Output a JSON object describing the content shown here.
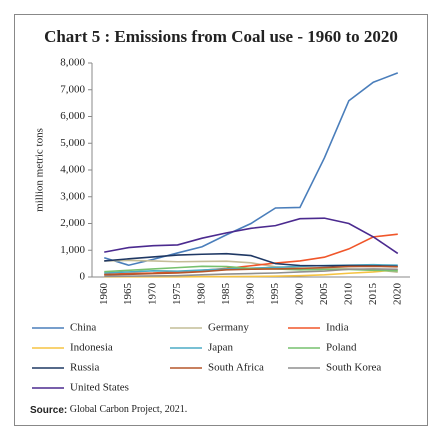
{
  "chart_data": {
    "type": "line",
    "title": "Chart 5 : Emissions from Coal use - 1960 to 2020",
    "y_label": "million metric tons",
    "categories": [
      "1960",
      "1965",
      "1970",
      "1975",
      "1980",
      "1985",
      "1990",
      "1995",
      "2000",
      "2005",
      "2010",
      "2015",
      "2020"
    ],
    "ylim": [
      0,
      8000
    ],
    "yticks": [
      0,
      {
        "value": 1000,
        "label": "1,000"
      },
      {
        "value": 2000,
        "label": "2,000"
      },
      {
        "value": 3000,
        "label": "3,000"
      },
      {
        "value": 4000,
        "label": "4,000"
      },
      {
        "value": 5000,
        "label": "5,000"
      },
      {
        "value": 6000,
        "label": "6,000"
      },
      {
        "value": 7000,
        "label": "7,000"
      },
      {
        "value": 8000,
        "label": "8,000"
      }
    ],
    "grid": false,
    "series": [
      {
        "name": "China",
        "color": "#4a7ebb",
        "values": [
          720,
          440,
          660,
          900,
          1130,
          1580,
          2000,
          2580,
          2600,
          4450,
          6590,
          7280,
          7630
        ]
      },
      {
        "name": "Germany",
        "color": "#c4bd97",
        "values": [
          600,
          620,
          600,
          570,
          580,
          590,
          530,
          380,
          330,
          330,
          300,
          280,
          180
        ]
      },
      {
        "name": "India",
        "color": "#f0562a",
        "values": [
          100,
          130,
          150,
          200,
          250,
          320,
          420,
          520,
          600,
          740,
          1050,
          1500,
          1600
        ]
      },
      {
        "name": "Indonesia",
        "color": "#f5c342",
        "values": [
          5,
          5,
          5,
          5,
          10,
          15,
          20,
          30,
          50,
          80,
          140,
          190,
          270
        ]
      },
      {
        "name": "Japan",
        "color": "#4bacc6",
        "values": [
          150,
          190,
          230,
          220,
          260,
          300,
          330,
          360,
          400,
          430,
          440,
          460,
          440
        ]
      },
      {
        "name": "Poland",
        "color": "#77c16e",
        "values": [
          200,
          250,
          300,
          350,
          400,
          390,
          320,
          300,
          270,
          280,
          280,
          250,
          230
        ]
      },
      {
        "name": "Russia",
        "color": "#1f3864",
        "values": [
          600,
          680,
          750,
          820,
          850,
          870,
          800,
          500,
          430,
          420,
          430,
          420,
          400
        ]
      },
      {
        "name": "South Africa",
        "color": "#b5562a",
        "values": [
          80,
          100,
          130,
          150,
          200,
          270,
          290,
          300,
          320,
          350,
          390,
          400,
          380
        ]
      },
      {
        "name": "South Korea",
        "color": "#8f8f8f",
        "values": [
          20,
          30,
          40,
          50,
          80,
          110,
          130,
          150,
          190,
          220,
          290,
          300,
          290
        ]
      },
      {
        "name": "United States",
        "color": "#4b2a8f",
        "values": [
          930,
          1100,
          1170,
          1200,
          1450,
          1650,
          1820,
          1920,
          2180,
          2200,
          2000,
          1500,
          880
        ]
      }
    ],
    "source_label": "Source:",
    "source_text": "Global Carbon Project, 2021."
  }
}
